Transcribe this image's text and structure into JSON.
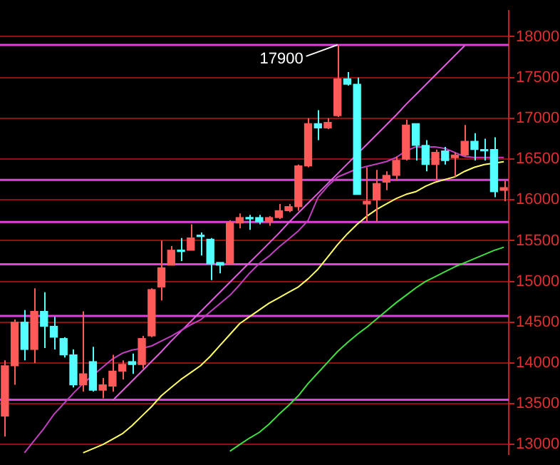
{
  "chart_data": {
    "type": "candlestick",
    "tick_labels": "y",
    "grid": "y",
    "categories": [
      null,
      null,
      null,
      null,
      null,
      null,
      null,
      null,
      null,
      null,
      null,
      null,
      null,
      null,
      null,
      null,
      null,
      null,
      null,
      null,
      null,
      null,
      null,
      null,
      null,
      null,
      null,
      null,
      null,
      null,
      null,
      null,
      null,
      null,
      null,
      null,
      null,
      null,
      null,
      null,
      null,
      null,
      null,
      null,
      null,
      null,
      null,
      null,
      null,
      null,
      null,
      null
    ],
    "ylim": [
      12883,
      18317
    ],
    "yticks": [
      13000,
      13500,
      14000,
      14500,
      15000,
      15500,
      16000,
      16500,
      17000,
      17500,
      18000
    ],
    "ohlc": [
      [
        13350,
        14033,
        13100,
        13967
      ],
      [
        13967,
        14533,
        13733,
        14500
      ],
      [
        14500,
        14650,
        14033,
        14167
      ],
      [
        14167,
        14917,
        14000,
        14633
      ],
      [
        14633,
        14867,
        14183,
        14450
      ],
      [
        14450,
        14567,
        14167,
        14317
      ],
      [
        14300,
        14317,
        14067,
        14100
      ],
      [
        14100,
        14167,
        13700,
        13733
      ],
      [
        13733,
        14633,
        13650,
        13867
      ],
      [
        14017,
        14200,
        13650,
        13667
      ],
      [
        13667,
        13817,
        13567,
        13733
      ],
      [
        13717,
        14100,
        13650,
        13900
      ],
      [
        13900,
        14033,
        13800,
        13983
      ],
      [
        14017,
        14117,
        13867,
        13983
      ],
      [
        13983,
        14333,
        13933,
        14300
      ],
      [
        14333,
        14917,
        14317,
        14900
      ],
      [
        14933,
        15500,
        14767,
        15167
      ],
      [
        15200,
        15433,
        15200,
        15383
      ],
      [
        15383,
        15533,
        15250,
        15367
      ],
      [
        15383,
        15700,
        15383,
        15533
      ],
      [
        15567,
        15600,
        15317,
        15550
      ],
      [
        15517,
        15533,
        15017,
        15217
      ],
      [
        15233,
        15233,
        15100,
        15200
      ],
      [
        15217,
        15750,
        15217,
        15717
      ],
      [
        15717,
        15833,
        15650,
        15783
      ],
      [
        15783,
        15817,
        15633,
        15767
      ],
      [
        15783,
        15817,
        15700,
        15733
      ],
      [
        15733,
        15800,
        15683,
        15783
      ],
      [
        15783,
        15950,
        15767,
        15867
      ],
      [
        15867,
        15950,
        15850,
        15917
      ],
      [
        15917,
        16433,
        15867,
        16417
      ],
      [
        16417,
        17000,
        16400,
        16933
      ],
      [
        16933,
        17100,
        16733,
        16883
      ],
      [
        16883,
        17000,
        16867,
        16950
      ],
      [
        17033,
        17900,
        17017,
        17483
      ],
      [
        17483,
        17567,
        17400,
        17417
      ],
      [
        17417,
        17500,
        16067,
        16067
      ],
      [
        15950,
        16400,
        15733,
        15983
      ],
      [
        16000,
        16367,
        15733,
        16200
      ],
      [
        16217,
        16350,
        16117,
        16300
      ],
      [
        16300,
        16533,
        16233,
        16483
      ],
      [
        16500,
        16983,
        16483,
        16917
      ],
      [
        16933,
        16933,
        16483,
        16667
      ],
      [
        16667,
        16733,
        16350,
        16433
      ],
      [
        16433,
        16617,
        16233,
        16583
      ],
      [
        16600,
        16650,
        16433,
        16483
      ],
      [
        16517,
        16583,
        16283,
        16550
      ],
      [
        16550,
        16917,
        16533,
        16717
      ],
      [
        16717,
        16817,
        16483,
        16617
      ],
      [
        16617,
        16750,
        16483,
        16600
      ],
      [
        16617,
        16767,
        16033,
        16100
      ],
      [
        16117,
        16233,
        15983,
        16150
      ]
    ],
    "colors": [
      "#ff5a5a",
      "#ff5a5a",
      "#54ffff",
      "#ff5a5a",
      "#54ffff",
      "#54ffff",
      "#54ffff",
      "#54ffff",
      "#ff5a5a",
      "#54ffff",
      "#ff5a5a",
      "#ff5a5a",
      "#ff5a5a",
      "#54ffff",
      "#ff5a5a",
      "#ff5a5a",
      "#ff5a5a",
      "#ff5a5a",
      "#54ffff",
      "#ff5a5a",
      "#54ffff",
      "#54ffff",
      "#54ffff",
      "#ff5a5a",
      "#ff5a5a",
      "#54ffff",
      "#54ffff",
      "#ff5a5a",
      "#ff5a5a",
      "#ff5a5a",
      "#ff5a5a",
      "#ff5a5a",
      "#54ffff",
      "#ff5a5a",
      "#ff5a5a",
      "#54ffff",
      "#54ffff",
      "#ff5a5a",
      "#ff5a5a",
      "#ff5a5a",
      "#ff5a5a",
      "#ff5a5a",
      "#54ffff",
      "#54ffff",
      "#ff5a5a",
      "#54ffff",
      "#ff5a5a",
      "#ff5a5a",
      "#54ffff",
      "#54ffff",
      "#54ffff",
      "#ff5a5a"
    ],
    "series": [
      {
        "type": "line",
        "color": "#ffff66",
        "values": [
          null,
          null,
          null,
          null,
          null,
          null,
          null,
          null,
          12900,
          12950,
          13000,
          13067,
          13133,
          13233,
          13350,
          13467,
          13600,
          13700,
          13800,
          13883,
          13967,
          14083,
          14217,
          14350,
          14483,
          14567,
          14650,
          14733,
          14800,
          14867,
          14933,
          15033,
          15150,
          15300,
          15450,
          15583,
          15700,
          15800,
          15883,
          15950,
          16017,
          16067,
          16100,
          16167,
          16217,
          16250,
          16283,
          16350,
          16400,
          16433,
          16450,
          16467
        ]
      },
      {
        "type": "line",
        "color": "#c040c0",
        "values": [
          null,
          null,
          12900,
          13050,
          13200,
          13370,
          13500,
          13630,
          13750,
          13850,
          13950,
          14050,
          14120,
          14160,
          14180,
          14210,
          14270,
          14330,
          14400,
          14470,
          14530,
          14630,
          14730,
          14830,
          14960,
          15100,
          15220,
          15310,
          15420,
          15520,
          15620,
          15750,
          16030,
          16170,
          16280,
          16330,
          16380,
          16410,
          16440,
          16470,
          16520,
          16600,
          16650,
          16650,
          16650,
          16630,
          16580,
          16530,
          16520,
          16520,
          16520,
          16520
        ]
      },
      {
        "type": "line",
        "color": "#40e040",
        "values": [
          null,
          null,
          null,
          null,
          null,
          null,
          null,
          null,
          null,
          null,
          null,
          null,
          null,
          null,
          null,
          null,
          null,
          null,
          null,
          null,
          null,
          null,
          null,
          12920,
          13000,
          13080,
          13150,
          13250,
          13370,
          13480,
          13600,
          13750,
          13880,
          14010,
          14140,
          14250,
          14350,
          14440,
          14540,
          14640,
          14740,
          14830,
          14920,
          15000,
          15060,
          15120,
          15180,
          15230,
          15280,
          15330,
          15380,
          15420
        ]
      },
      {
        "type": "line",
        "color": "#e060e0",
        "values": [
          null,
          null,
          null,
          null,
          null,
          null,
          null,
          null,
          null,
          null,
          null,
          13540,
          13660,
          13780,
          13900,
          14020,
          14140,
          14270,
          14390,
          14510,
          14630,
          14750,
          14870,
          14990,
          15110,
          15230,
          15350,
          15470,
          15590,
          15720,
          15840,
          15960,
          16080,
          16200,
          16320,
          16440,
          16560,
          16680,
          16800,
          16920,
          17040,
          17170,
          17290,
          17410,
          17530,
          17650,
          17770,
          17890,
          null,
          null,
          null,
          null
        ]
      }
    ],
    "ref_lines": [
      {
        "axis": "y",
        "value": 17900,
        "color": "#e040e0"
      },
      {
        "axis": "y",
        "value": 16245,
        "color": "#e040e0"
      },
      {
        "axis": "y",
        "value": 15728,
        "color": "#e040e0"
      },
      {
        "axis": "y",
        "value": 15210,
        "color": "#e040e0"
      },
      {
        "axis": "y",
        "value": 14578,
        "color": "#e040e0"
      },
      {
        "axis": "y",
        "value": 13550,
        "color": "#e040e0"
      }
    ],
    "annotations": [
      {
        "text": "17900",
        "y": 17900
      }
    ]
  }
}
